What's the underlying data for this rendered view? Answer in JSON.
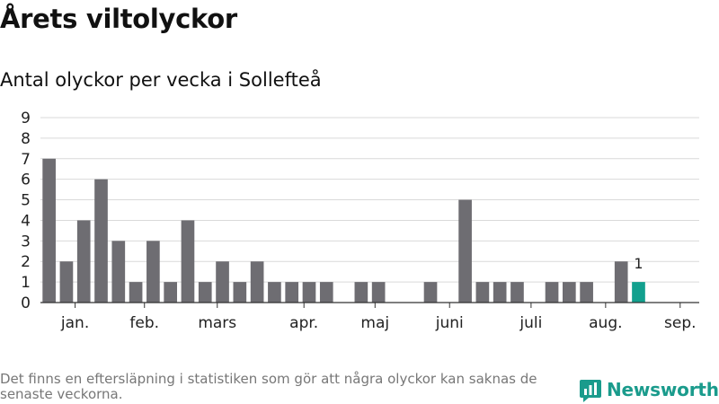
{
  "header": {
    "title": "Årets viltolyckor",
    "subtitle": "Antal olyckor per vecka i Sollefteå"
  },
  "footer": {
    "note": "Det finns en eftersläpning i statistiken som gör att några olyckor kan saknas de senaste veckorna.",
    "logo_text": "Newsworthy"
  },
  "colors": {
    "bar": "#6e6d72",
    "highlight": "#12a08e",
    "grid": "#d9d9d9",
    "axis": "#333333",
    "brand": "#1a9b8c"
  },
  "icons": {
    "logo": "bar-chart-logo-icon"
  },
  "chart_data": {
    "type": "bar",
    "xlabel": "",
    "ylabel": "",
    "ylim": [
      0,
      9
    ],
    "yticks": [
      0,
      1,
      2,
      3,
      4,
      5,
      6,
      7,
      8,
      9
    ],
    "grid": true,
    "x": [
      1,
      2,
      3,
      4,
      5,
      6,
      7,
      8,
      9,
      10,
      11,
      12,
      13,
      14,
      15,
      16,
      17,
      18,
      19,
      20,
      21,
      22,
      23,
      24,
      25,
      26,
      27,
      28,
      29,
      30,
      31,
      32,
      33,
      34,
      35,
      36,
      37,
      38
    ],
    "values": [
      7,
      2,
      4,
      6,
      3,
      1,
      3,
      1,
      4,
      1,
      2,
      1,
      2,
      1,
      1,
      1,
      1,
      0,
      1,
      1,
      0,
      0,
      1,
      0,
      5,
      1,
      1,
      1,
      0,
      1,
      1,
      1,
      0,
      2,
      1,
      null,
      null,
      null
    ],
    "highlight_index": 34,
    "highlight_label": "1",
    "month_labels": [
      {
        "label": "jan.",
        "x": 2.5
      },
      {
        "label": "feb.",
        "x": 6.5
      },
      {
        "label": "mars",
        "x": 10.7
      },
      {
        "label": "apr.",
        "x": 15.7
      },
      {
        "label": "maj",
        "x": 19.8
      },
      {
        "label": "juni",
        "x": 24.1
      },
      {
        "label": "juli",
        "x": 28.8
      },
      {
        "label": "aug.",
        "x": 33.1
      },
      {
        "label": "sep.",
        "x": 37.4
      }
    ]
  }
}
